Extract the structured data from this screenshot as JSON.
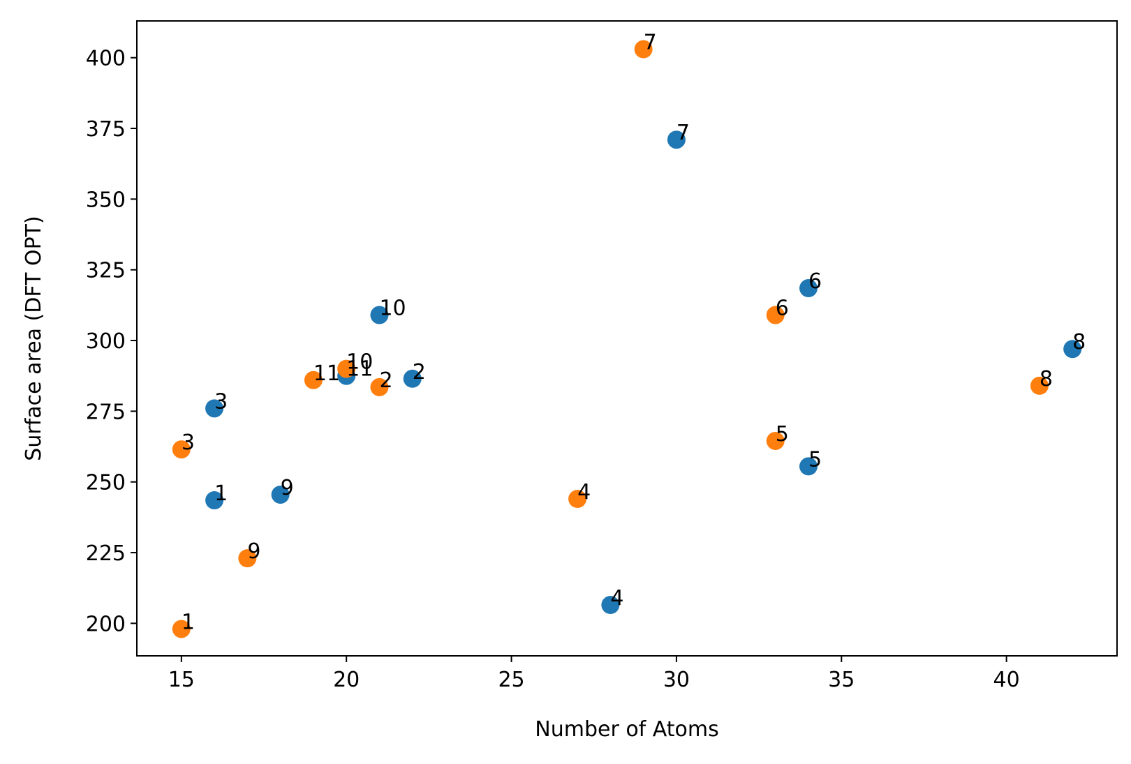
{
  "chart_data": {
    "type": "scatter",
    "title": "",
    "xlabel": "Number of Atoms",
    "ylabel": "Surface area (DFT OPT)",
    "xlim": [
      13.65,
      43.35
    ],
    "ylim": [
      188.5,
      413.0
    ],
    "xticks": [
      15,
      20,
      25,
      30,
      35,
      40
    ],
    "yticks": [
      200,
      225,
      250,
      275,
      300,
      325,
      350,
      375,
      400
    ],
    "grid": false,
    "legend": "none",
    "series": [
      {
        "color": "#1f77b4",
        "points": [
          {
            "x": 16,
            "y": 243.5,
            "label": "1"
          },
          {
            "x": 22,
            "y": 286.5,
            "label": "2"
          },
          {
            "x": 16,
            "y": 276.0,
            "label": "3"
          },
          {
            "x": 28,
            "y": 206.5,
            "label": "4"
          },
          {
            "x": 34,
            "y": 255.5,
            "label": "5"
          },
          {
            "x": 34,
            "y": 318.5,
            "label": "6"
          },
          {
            "x": 30,
            "y": 371.0,
            "label": "7"
          },
          {
            "x": 42,
            "y": 297.0,
            "label": "8"
          },
          {
            "x": 18,
            "y": 245.5,
            "label": "9"
          },
          {
            "x": 21,
            "y": 309.0,
            "label": "10"
          },
          {
            "x": 20,
            "y": 287.5,
            "label": "11"
          }
        ]
      },
      {
        "color": "#ff7f0e",
        "points": [
          {
            "x": 15,
            "y": 198.0,
            "label": "1"
          },
          {
            "x": 21,
            "y": 283.5,
            "label": "2"
          },
          {
            "x": 15,
            "y": 261.5,
            "label": "3"
          },
          {
            "x": 27,
            "y": 244.0,
            "label": "4"
          },
          {
            "x": 33,
            "y": 264.5,
            "label": "5"
          },
          {
            "x": 33,
            "y": 309.0,
            "label": "6"
          },
          {
            "x": 29,
            "y": 403.0,
            "label": "7"
          },
          {
            "x": 41,
            "y": 284.0,
            "label": "8"
          },
          {
            "x": 17,
            "y": 223.0,
            "label": "9"
          },
          {
            "x": 20,
            "y": 290.0,
            "label": "10"
          },
          {
            "x": 19,
            "y": 286.0,
            "label": "11"
          }
        ]
      }
    ]
  }
}
